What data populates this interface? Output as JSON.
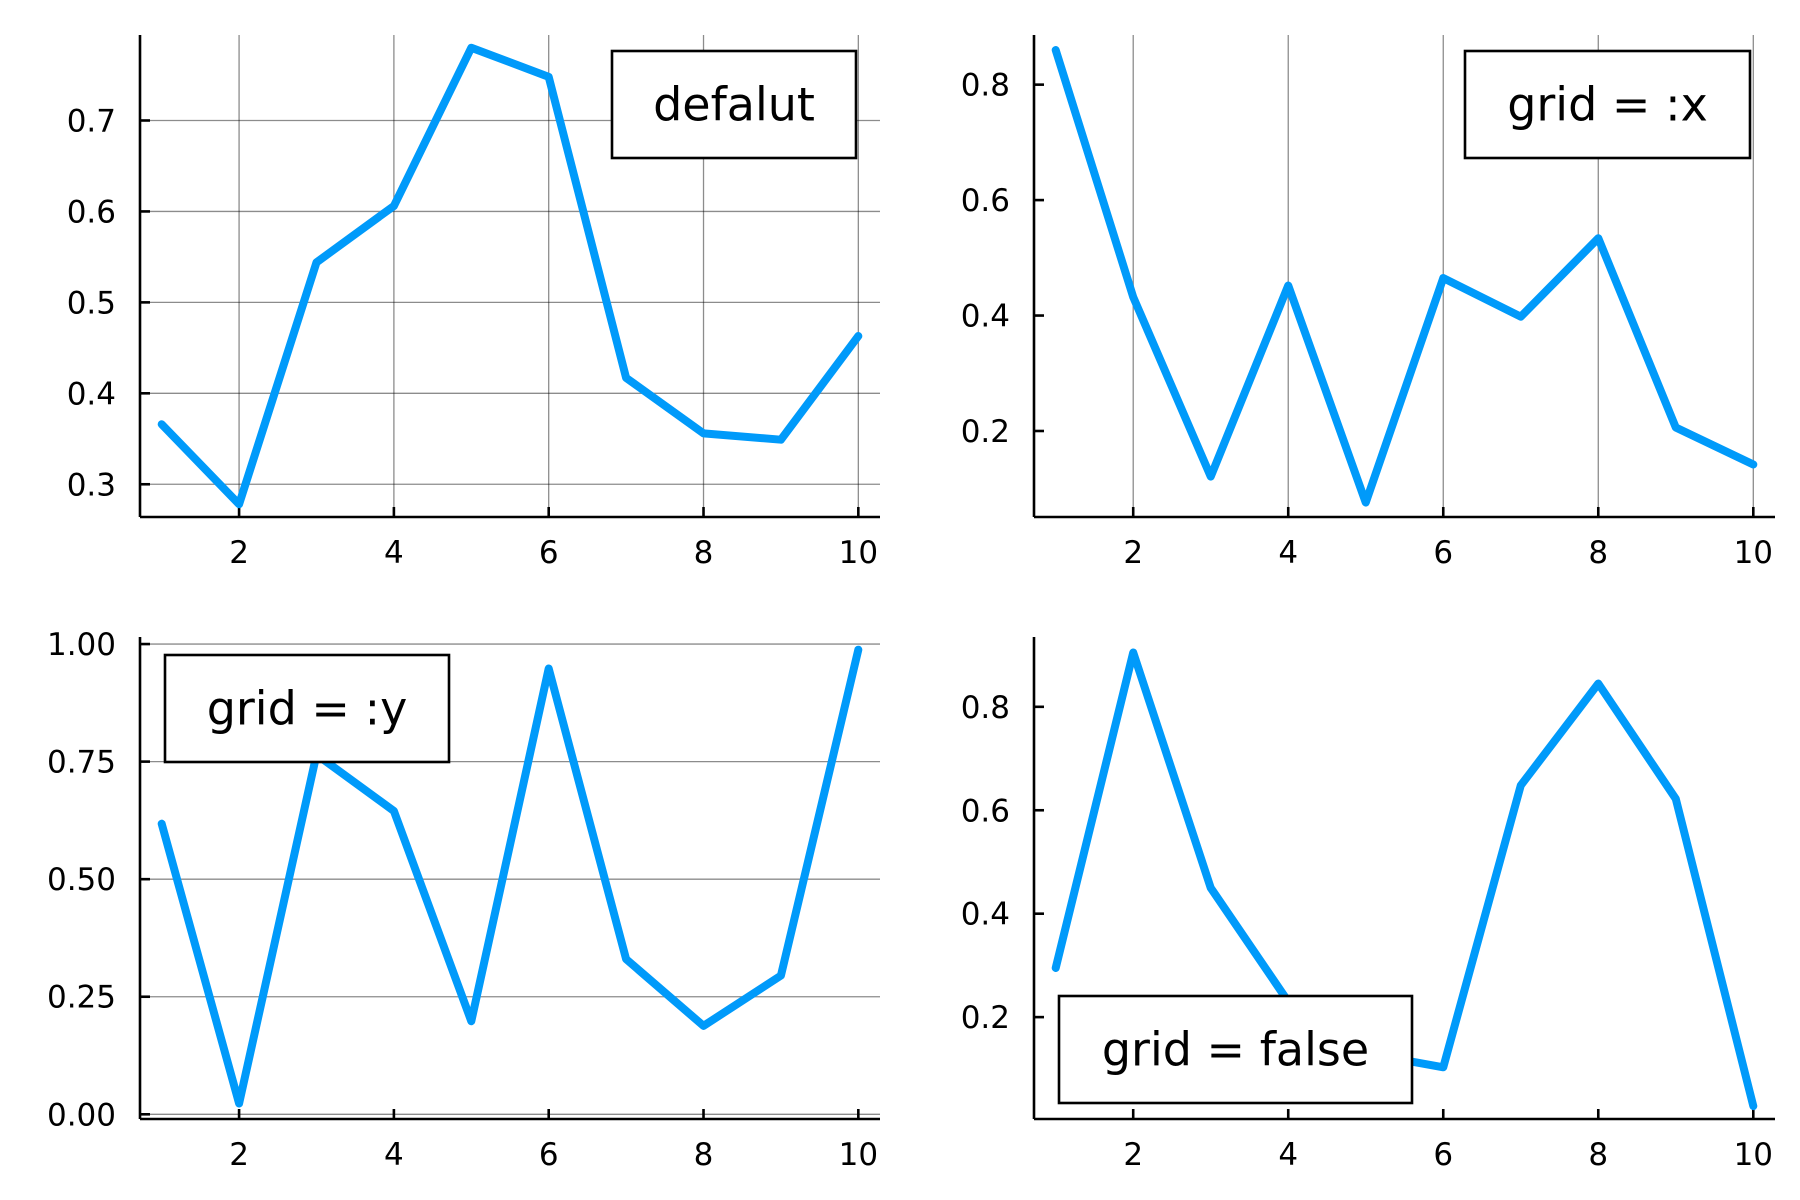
{
  "chart_data": [
    {
      "type": "line",
      "grid": "both",
      "legend_position": "top-right",
      "xlim": [
        0.72,
        10.28
      ],
      "ylim": [
        0.264,
        0.794
      ],
      "xticks": [
        2,
        4,
        6,
        8,
        10
      ],
      "xtick_labels": [
        "2",
        "4",
        "6",
        "8",
        "10"
      ],
      "yticks": [
        0.3,
        0.4,
        0.5,
        0.6,
        0.7
      ],
      "ytick_labels": [
        "0.3",
        "0.4",
        "0.5",
        "0.6",
        "0.7"
      ],
      "series": [
        {
          "name": "defalut",
          "color": "#009AFA",
          "x": [
            1,
            2,
            3,
            4,
            5,
            6,
            7,
            8,
            9,
            10
          ],
          "y": [
            0.366,
            0.278,
            0.544,
            0.606,
            0.78,
            0.748,
            0.417,
            0.356,
            0.349,
            0.463
          ]
        }
      ]
    },
    {
      "type": "line",
      "grid": "x",
      "legend_position": "top-right",
      "xlim": [
        0.72,
        10.28
      ],
      "ylim": [
        0.051,
        0.886
      ],
      "xticks": [
        2,
        4,
        6,
        8,
        10
      ],
      "xtick_labels": [
        "2",
        "4",
        "6",
        "8",
        "10"
      ],
      "yticks": [
        0.2,
        0.4,
        0.6,
        0.8
      ],
      "ytick_labels": [
        "0.2",
        "0.4",
        "0.6",
        "0.8"
      ],
      "series": [
        {
          "name": "grid = :x",
          "color": "#009AFA",
          "x": [
            1,
            2,
            3,
            4,
            5,
            6,
            7,
            8,
            9,
            10
          ],
          "y": [
            0.86,
            0.432,
            0.121,
            0.452,
            0.076,
            0.465,
            0.398,
            0.534,
            0.206,
            0.142
          ]
        }
      ]
    },
    {
      "type": "line",
      "grid": "y",
      "legend_position": "top-left",
      "xlim": [
        0.72,
        10.28
      ],
      "ylim": [
        -0.01,
        1.015
      ],
      "xticks": [
        2,
        4,
        6,
        8,
        10
      ],
      "xtick_labels": [
        "2",
        "4",
        "6",
        "8",
        "10"
      ],
      "yticks": [
        0,
        0.25,
        0.5,
        0.75,
        1.0
      ],
      "ytick_labels": [
        "0.00",
        "0.25",
        "0.50",
        "0.75",
        "1.00"
      ],
      "series": [
        {
          "name": "grid = :y",
          "color": "#009AFA",
          "x": [
            1,
            2,
            3,
            4,
            5,
            6,
            7,
            8,
            9,
            10
          ],
          "y": [
            0.618,
            0.023,
            0.765,
            0.645,
            0.198,
            0.948,
            0.33,
            0.188,
            0.295,
            0.988
          ]
        }
      ]
    },
    {
      "type": "line",
      "grid": "none",
      "legend_position": "bottom-left",
      "xlim": [
        0.72,
        10.28
      ],
      "ylim": [
        0.003,
        0.935
      ],
      "xticks": [
        2,
        4,
        6,
        8,
        10
      ],
      "xtick_labels": [
        "2",
        "4",
        "6",
        "8",
        "10"
      ],
      "yticks": [
        0.2,
        0.4,
        0.6,
        0.8
      ],
      "ytick_labels": [
        "0.2",
        "0.4",
        "0.6",
        "0.8"
      ],
      "series": [
        {
          "name": "grid = false",
          "color": "#009AFA",
          "x": [
            1,
            2,
            3,
            4,
            5,
            6,
            7,
            8,
            9,
            10
          ],
          "y": [
            0.295,
            0.905,
            0.45,
            0.23,
            0.13,
            0.103,
            0.648,
            0.845,
            0.622,
            0.028
          ]
        }
      ]
    }
  ]
}
